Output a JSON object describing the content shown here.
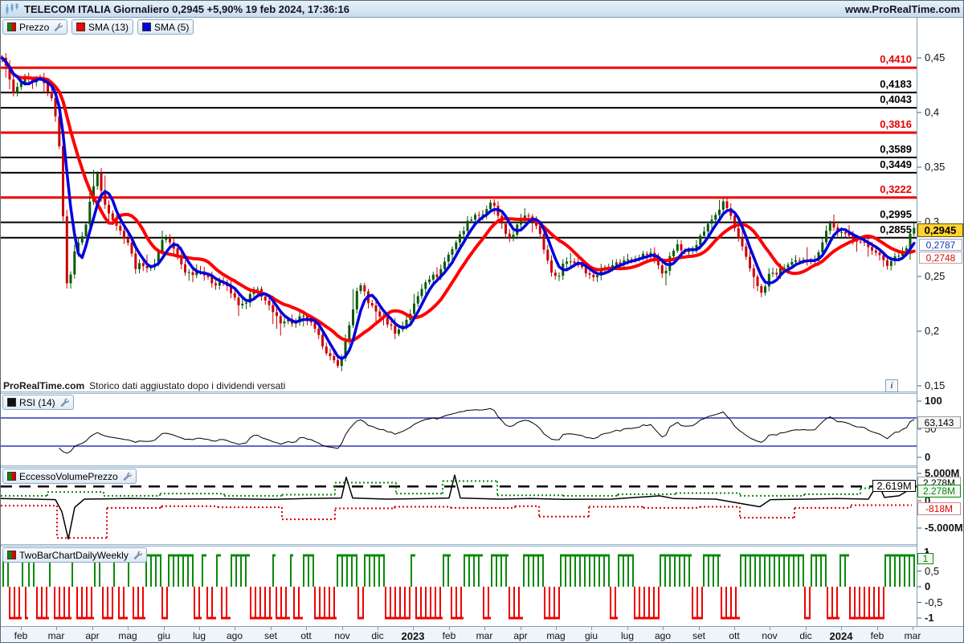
{
  "header": {
    "title": "TELECOM ITALIA Giornaliero 0,2945 +5,90% 19 feb 2024, 17:36:16",
    "website": "www.ProRealTime.com"
  },
  "legend": {
    "price_label": "Prezzo",
    "sma13_label": "SMA (13)",
    "sma5_label": "SMA (5)"
  },
  "colors": {
    "sma13": "#ff0000",
    "sma5": "#0000dd",
    "candle_up": "#0a5a0a",
    "candle_down": "#cc0000",
    "level_red": "#f00000",
    "level_black": "#000000",
    "rsi_line": "#000000",
    "rsi_zone": "#3333bb",
    "vol_green": "#0a8a0a",
    "vol_red": "#dd0000",
    "vol_black": "#000000",
    "tb_green": "#0a8a0a",
    "tb_red": "#ee0000",
    "last_box_bg": "#ffd231"
  },
  "main_chart": {
    "levels": [
      {
        "label": "0,4410",
        "price": 0.441,
        "color": "red"
      },
      {
        "label": "0,4183",
        "price": 0.4183,
        "color": "black"
      },
      {
        "label": "0,4043",
        "price": 0.4043,
        "color": "black"
      },
      {
        "label": "0,3816",
        "price": 0.3816,
        "color": "red"
      },
      {
        "label": "0,3589",
        "price": 0.3589,
        "color": "black"
      },
      {
        "label": "0,3449",
        "price": 0.3449,
        "color": "black"
      },
      {
        "label": "0,3222",
        "price": 0.3222,
        "color": "red"
      },
      {
        "label": "0,2995",
        "price": 0.2995,
        "color": "black"
      },
      {
        "label": "0,2855",
        "price": 0.2855,
        "color": "black"
      }
    ],
    "axis_ticks": [
      {
        "label": "0,45",
        "price": 0.45
      },
      {
        "label": "0,4",
        "price": 0.4
      },
      {
        "label": "0,35",
        "price": 0.35
      },
      {
        "label": "0,3",
        "price": 0.3
      },
      {
        "label": "0,25",
        "price": 0.25
      },
      {
        "label": "0,2",
        "price": 0.2
      },
      {
        "label": "0,15",
        "price": 0.15
      }
    ],
    "boxes": {
      "last": "0,2945",
      "sma5": "0,2787",
      "sma13": "0,2748"
    },
    "footnote_brand": "ProRealTime.com",
    "footnote_text": "Storico dati aggiustato dopo i dividendi versati",
    "info_icon": "i"
  },
  "rsi_panel": {
    "label": "RSI (14)",
    "axis": [
      {
        "label": "100",
        "value": 100,
        "bold": true
      },
      {
        "label": "50",
        "value": 50,
        "bold": false
      },
      {
        "label": "0",
        "value": 0,
        "bold": true
      }
    ],
    "current": "63,143",
    "zones": [
      70,
      20
    ]
  },
  "volume_panel": {
    "label": "EccessoVolumePrezzo",
    "axis": [
      {
        "label": "5.000M",
        "value": 5,
        "bold": true
      },
      {
        "label": "0",
        "value": 0,
        "bold": true
      },
      {
        "label": "-5.000M",
        "value": -5,
        "bold": true
      }
    ],
    "dashed_label": "2.619M",
    "current_black": "2.278M",
    "current_green": "2.278M",
    "current_red": "-818M"
  },
  "twobar_panel": {
    "label": "TwoBarChartDailyWeekly",
    "axis": [
      {
        "label": "1",
        "value": 1,
        "bold": true
      },
      {
        "label": "0,5",
        "value": 0.5,
        "bold": false
      },
      {
        "label": "0",
        "value": 0,
        "bold": true
      },
      {
        "label": "-0,5",
        "value": -0.5,
        "bold": false
      },
      {
        "label": "-1",
        "value": -1,
        "bold": true
      }
    ],
    "current": "1",
    "axis_hidden_top": "1"
  },
  "x_axis": {
    "labels": [
      {
        "label": "feb"
      },
      {
        "label": "mar"
      },
      {
        "label": "apr"
      },
      {
        "label": "mag"
      },
      {
        "label": "giu"
      },
      {
        "label": "lug"
      },
      {
        "label": "ago"
      },
      {
        "label": "set"
      },
      {
        "label": "ott"
      },
      {
        "label": "nov"
      },
      {
        "label": "dic"
      },
      {
        "label": "2023",
        "year": true
      },
      {
        "label": "feb"
      },
      {
        "label": "mar"
      },
      {
        "label": "apr"
      },
      {
        "label": "mag"
      },
      {
        "label": "giu"
      },
      {
        "label": "lug"
      },
      {
        "label": "ago"
      },
      {
        "label": "set"
      },
      {
        "label": "ott"
      },
      {
        "label": "nov"
      },
      {
        "label": "dic"
      },
      {
        "label": "2024",
        "year": true
      },
      {
        "label": "feb"
      },
      {
        "label": "mar"
      }
    ]
  },
  "chart_data": {
    "type": "candlestick",
    "symbol": "TELECOM ITALIA",
    "timeframe": "Giornaliero",
    "last_price": 0.2945,
    "change_pct": "+5,90%",
    "as_of": "19 feb 2024, 17:36:16",
    "y_axis": {
      "min": 0.15,
      "max": 0.46
    },
    "price_close_path": [
      [
        0,
        0.45
      ],
      [
        8,
        0.443
      ],
      [
        14,
        0.415
      ],
      [
        22,
        0.424
      ],
      [
        30,
        0.431
      ],
      [
        40,
        0.426
      ],
      [
        48,
        0.432
      ],
      [
        56,
        0.424
      ],
      [
        62,
        0.415
      ],
      [
        68,
        0.398
      ],
      [
        74,
        0.36
      ],
      [
        80,
        0.268
      ],
      [
        84,
        0.228
      ],
      [
        90,
        0.272
      ],
      [
        98,
        0.282
      ],
      [
        106,
        0.298
      ],
      [
        114,
        0.33
      ],
      [
        120,
        0.345
      ],
      [
        128,
        0.318
      ],
      [
        138,
        0.305
      ],
      [
        148,
        0.292
      ],
      [
        158,
        0.282
      ],
      [
        168,
        0.258
      ],
      [
        176,
        0.262
      ],
      [
        186,
        0.256
      ],
      [
        194,
        0.266
      ],
      [
        202,
        0.287
      ],
      [
        210,
        0.282
      ],
      [
        220,
        0.268
      ],
      [
        230,
        0.254
      ],
      [
        240,
        0.253
      ],
      [
        248,
        0.257
      ],
      [
        256,
        0.249
      ],
      [
        266,
        0.243
      ],
      [
        276,
        0.246
      ],
      [
        286,
        0.235
      ],
      [
        296,
        0.225
      ],
      [
        304,
        0.223
      ],
      [
        312,
        0.236
      ],
      [
        320,
        0.238
      ],
      [
        330,
        0.227
      ],
      [
        340,
        0.215
      ],
      [
        348,
        0.209
      ],
      [
        356,
        0.211
      ],
      [
        366,
        0.206
      ],
      [
        374,
        0.214
      ],
      [
        384,
        0.209
      ],
      [
        394,
        0.197
      ],
      [
        404,
        0.183
      ],
      [
        412,
        0.174
      ],
      [
        420,
        0.167
      ],
      [
        428,
        0.186
      ],
      [
        436,
        0.213
      ],
      [
        444,
        0.238
      ],
      [
        450,
        0.241
      ],
      [
        458,
        0.226
      ],
      [
        468,
        0.217
      ],
      [
        478,
        0.21
      ],
      [
        486,
        0.204
      ],
      [
        492,
        0.198
      ],
      [
        500,
        0.205
      ],
      [
        510,
        0.217
      ],
      [
        520,
        0.233
      ],
      [
        528,
        0.246
      ],
      [
        536,
        0.25
      ],
      [
        544,
        0.251
      ],
      [
        552,
        0.263
      ],
      [
        562,
        0.276
      ],
      [
        572,
        0.288
      ],
      [
        582,
        0.301
      ],
      [
        590,
        0.307
      ],
      [
        598,
        0.306
      ],
      [
        606,
        0.311
      ],
      [
        612,
        0.32
      ],
      [
        620,
        0.302
      ],
      [
        630,
        0.287
      ],
      [
        638,
        0.287
      ],
      [
        646,
        0.302
      ],
      [
        654,
        0.308
      ],
      [
        662,
        0.303
      ],
      [
        670,
        0.291
      ],
      [
        678,
        0.27
      ],
      [
        686,
        0.254
      ],
      [
        692,
        0.247
      ],
      [
        700,
        0.262
      ],
      [
        708,
        0.265
      ],
      [
        716,
        0.262
      ],
      [
        724,
        0.259
      ],
      [
        732,
        0.251
      ],
      [
        740,
        0.25
      ],
      [
        750,
        0.257
      ],
      [
        760,
        0.262
      ],
      [
        770,
        0.262
      ],
      [
        780,
        0.266
      ],
      [
        790,
        0.268
      ],
      [
        800,
        0.27
      ],
      [
        810,
        0.271
      ],
      [
        818,
        0.262
      ],
      [
        826,
        0.248
      ],
      [
        834,
        0.273
      ],
      [
        842,
        0.278
      ],
      [
        852,
        0.271
      ],
      [
        862,
        0.276
      ],
      [
        872,
        0.288
      ],
      [
        882,
        0.299
      ],
      [
        892,
        0.309
      ],
      [
        900,
        0.318
      ],
      [
        908,
        0.307
      ],
      [
        916,
        0.288
      ],
      [
        924,
        0.274
      ],
      [
        932,
        0.258
      ],
      [
        940,
        0.246
      ],
      [
        948,
        0.232
      ],
      [
        956,
        0.252
      ],
      [
        966,
        0.253
      ],
      [
        976,
        0.259
      ],
      [
        986,
        0.263
      ],
      [
        996,
        0.263
      ],
      [
        1006,
        0.266
      ],
      [
        1016,
        0.266
      ],
      [
        1026,
        0.291
      ],
      [
        1032,
        0.299
      ],
      [
        1040,
        0.292
      ],
      [
        1050,
        0.288
      ],
      [
        1060,
        0.286
      ],
      [
        1070,
        0.282
      ],
      [
        1080,
        0.277
      ],
      [
        1090,
        0.273
      ],
      [
        1098,
        0.264
      ],
      [
        1104,
        0.26
      ],
      [
        1112,
        0.268
      ],
      [
        1120,
        0.272
      ],
      [
        1128,
        0.277
      ],
      [
        1134,
        0.2945
      ]
    ],
    "rsi": {
      "period": 14,
      "current": 63.143,
      "zones": [
        70,
        20
      ]
    },
    "volume_excess": {
      "dashed_level": 2.619,
      "black_line": [
        [
          0,
          0.4
        ],
        [
          40,
          0.3
        ],
        [
          68,
          0.2
        ],
        [
          76,
          -2.0
        ],
        [
          84,
          -7.0
        ],
        [
          92,
          -1.2
        ],
        [
          104,
          0.3
        ],
        [
          160,
          0.4
        ],
        [
          220,
          0.3
        ],
        [
          280,
          0.35
        ],
        [
          340,
          0.25
        ],
        [
          380,
          0.4
        ],
        [
          424,
          0.5
        ],
        [
          430,
          4.3
        ],
        [
          438,
          0.5
        ],
        [
          480,
          0.3
        ],
        [
          530,
          0.4
        ],
        [
          558,
          0.5
        ],
        [
          565,
          4.7
        ],
        [
          572,
          0.5
        ],
        [
          620,
          0.3
        ],
        [
          660,
          0.4
        ],
        [
          700,
          0.25
        ],
        [
          760,
          0.3
        ],
        [
          820,
          0.9
        ],
        [
          838,
          0.4
        ],
        [
          890,
          0.3
        ],
        [
          925,
          -0.6
        ],
        [
          945,
          -1.1
        ],
        [
          958,
          0.2
        ],
        [
          1000,
          0.3
        ],
        [
          1040,
          0.4
        ],
        [
          1080,
          0.3
        ],
        [
          1092,
          3.2
        ],
        [
          1100,
          0.6
        ],
        [
          1118,
          0.9
        ],
        [
          1134,
          2.278
        ]
      ],
      "green_steps": [
        [
          0,
          58,
          0.9
        ],
        [
          58,
          128,
          1.6
        ],
        [
          128,
          198,
          0.9
        ],
        [
          198,
          278,
          1.3
        ],
        [
          278,
          350,
          0.9
        ],
        [
          350,
          416,
          1.1
        ],
        [
          416,
          492,
          3.3
        ],
        [
          492,
          550,
          1.3
        ],
        [
          550,
          618,
          3.6
        ],
        [
          618,
          700,
          1.0
        ],
        [
          700,
          768,
          0.9
        ],
        [
          768,
          840,
          1.2
        ],
        [
          840,
          920,
          1.4
        ],
        [
          920,
          1000,
          0.9
        ],
        [
          1000,
          1070,
          1.2
        ],
        [
          1070,
          1134,
          2.278
        ]
      ],
      "red_steps": [
        [
          0,
          70,
          -0.9
        ],
        [
          70,
          132,
          -6.8
        ],
        [
          132,
          200,
          -1.3
        ],
        [
          200,
          270,
          -1.0
        ],
        [
          270,
          350,
          -1.2
        ],
        [
          350,
          416,
          -3.4
        ],
        [
          416,
          490,
          -1.4
        ],
        [
          490,
          560,
          -1.1
        ],
        [
          560,
          640,
          -1.3
        ],
        [
          640,
          670,
          -1.0
        ],
        [
          670,
          732,
          -2.9
        ],
        [
          732,
          800,
          -1.1
        ],
        [
          800,
          870,
          -1.3
        ],
        [
          870,
          920,
          -1.1
        ],
        [
          920,
          988,
          -3.1
        ],
        [
          988,
          1058,
          -1.3
        ],
        [
          1058,
          1134,
          -0.818
        ]
      ]
    },
    "twobar_runs": [
      [
        2,
        10,
        1
      ],
      [
        10,
        26,
        -1
      ],
      [
        26,
        30,
        1
      ],
      [
        30,
        34,
        -1
      ],
      [
        34,
        44,
        1
      ],
      [
        44,
        60,
        -1
      ],
      [
        60,
        66,
        1
      ],
      [
        66,
        88,
        -1
      ],
      [
        88,
        94,
        1
      ],
      [
        94,
        116,
        -1
      ],
      [
        116,
        126,
        1
      ],
      [
        126,
        140,
        -1
      ],
      [
        140,
        146,
        1
      ],
      [
        146,
        158,
        -1
      ],
      [
        158,
        164,
        1
      ],
      [
        164,
        180,
        -1
      ],
      [
        180,
        200,
        1
      ],
      [
        200,
        208,
        -1
      ],
      [
        208,
        240,
        1
      ],
      [
        240,
        250,
        -1
      ],
      [
        250,
        256,
        1
      ],
      [
        256,
        268,
        -1
      ],
      [
        268,
        274,
        1
      ],
      [
        274,
        286,
        -1
      ],
      [
        286,
        310,
        1
      ],
      [
        310,
        338,
        -1
      ],
      [
        338,
        342,
        1
      ],
      [
        342,
        360,
        -1
      ],
      [
        360,
        364,
        1
      ],
      [
        364,
        376,
        -1
      ],
      [
        376,
        390,
        1
      ],
      [
        390,
        418,
        -1
      ],
      [
        418,
        444,
        1
      ],
      [
        444,
        452,
        -1
      ],
      [
        452,
        478,
        1
      ],
      [
        478,
        510,
        -1
      ],
      [
        510,
        516,
        1
      ],
      [
        516,
        550,
        -1
      ],
      [
        550,
        560,
        1
      ],
      [
        560,
        576,
        -1
      ],
      [
        576,
        600,
        1
      ],
      [
        600,
        610,
        -1
      ],
      [
        610,
        632,
        1
      ],
      [
        632,
        650,
        -1
      ],
      [
        650,
        676,
        1
      ],
      [
        676,
        696,
        -1
      ],
      [
        696,
        758,
        1
      ],
      [
        758,
        768,
        -1
      ],
      [
        768,
        788,
        1
      ],
      [
        788,
        820,
        -1
      ],
      [
        820,
        860,
        1
      ],
      [
        860,
        874,
        -1
      ],
      [
        874,
        896,
        1
      ],
      [
        896,
        920,
        -1
      ],
      [
        920,
        1000,
        1
      ],
      [
        1000,
        1008,
        -1
      ],
      [
        1008,
        1028,
        1
      ],
      [
        1028,
        1044,
        -1
      ],
      [
        1044,
        1056,
        1
      ],
      [
        1056,
        1100,
        -1
      ],
      [
        1100,
        1138,
        1
      ]
    ]
  }
}
